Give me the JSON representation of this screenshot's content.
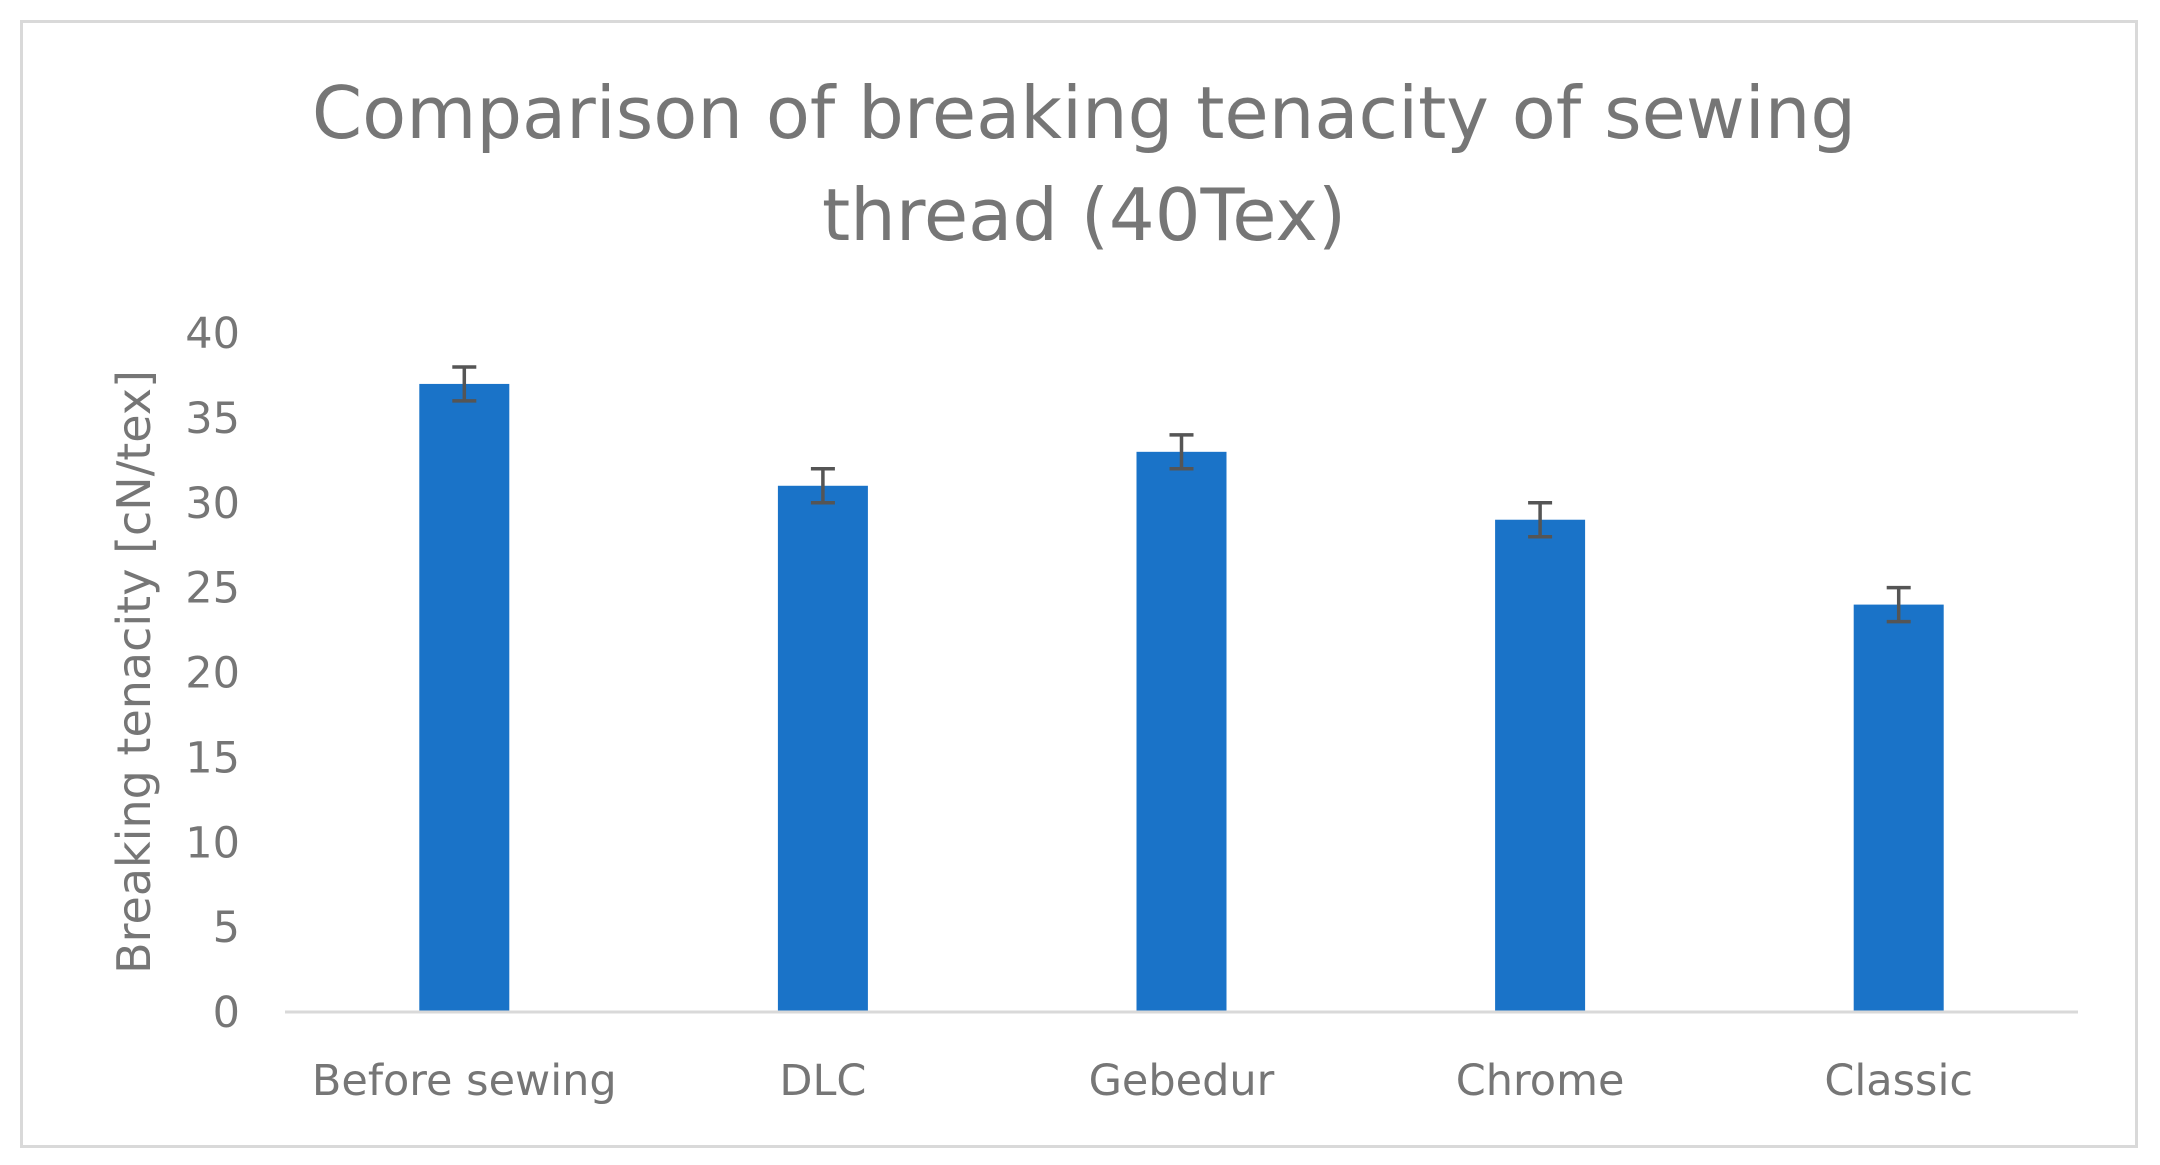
{
  "chart_data": {
    "type": "bar",
    "title": [
      "Comparison of breaking tenacity of sewing",
      "thread (40Tex)"
    ],
    "xlabel": "",
    "ylabel": "Breaking tenacity [cN/tex]",
    "categories": [
      "Before sewing",
      "DLC",
      "Gebedur",
      "Chrome",
      "Classic"
    ],
    "values": [
      37,
      31,
      33,
      29,
      24
    ],
    "error": [
      1,
      1,
      1,
      1,
      1
    ],
    "ylim": [
      0,
      40
    ],
    "yticks": [
      0,
      5,
      10,
      15,
      20,
      25,
      30,
      35,
      40
    ],
    "grid": false,
    "legend": "none",
    "colors": {
      "bar": "#1a73c8",
      "error_bar": "#555555",
      "axis": "#d9d9d9",
      "text": "#767676"
    }
  }
}
